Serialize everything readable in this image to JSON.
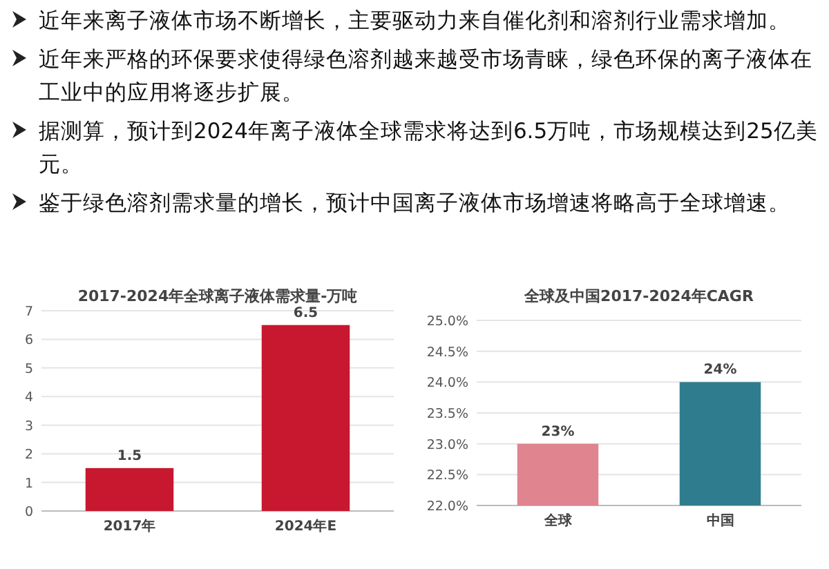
{
  "chart_data": [
    {
      "type": "other",
      "annotations": [
        "近年来离子液体市场不断增长，主要驱动力来自催化剂和溶剂行业需求增加。",
        "近年来严格的环保要求使得绿色溶剂越来越受市场青睐，绿色环保的离子液体在工业中的应用将逐步扩展。",
        "据测算，预计到2024年离子液体全球需求将达到6.5万吨，市场规模达到25亿美元。",
        "鉴于绿色溶剂需求量的增长，预计中国离子液体市场增速将略高于全球增速。"
      ]
    },
    {
      "type": "bar",
      "title": "2017-2024年全球离子液体需求量-万吨",
      "categories": [
        "2017年",
        "2024年E"
      ],
      "values": [
        1.5,
        6.5
      ],
      "color": "#c8182f",
      "ylim": [
        0,
        7
      ],
      "yticks": [
        0,
        1,
        2,
        3,
        4,
        5,
        6,
        7
      ],
      "grid": "y",
      "data_labels": true
    },
    {
      "type": "bar",
      "title": "全球及中国2017-2024年CAGR",
      "categories": [
        "全球",
        "中国"
      ],
      "values": [
        23,
        24
      ],
      "colors": [
        "#e0848f",
        "#2f7c8e"
      ],
      "value_labels": [
        "23%",
        "24%"
      ],
      "ylim": [
        22,
        25
      ],
      "yticks": [
        {
          "value": 22,
          "label": "22.0%"
        },
        {
          "value": 22.5,
          "label": "22.5%"
        },
        {
          "value": 23,
          "label": "23.0%"
        },
        {
          "value": 23.5,
          "label": "23.5%"
        },
        {
          "value": 24,
          "label": "24.0%"
        },
        {
          "value": 24.5,
          "label": "24.5%"
        },
        {
          "value": 25,
          "label": "25.0%"
        }
      ],
      "grid": "y"
    }
  ]
}
